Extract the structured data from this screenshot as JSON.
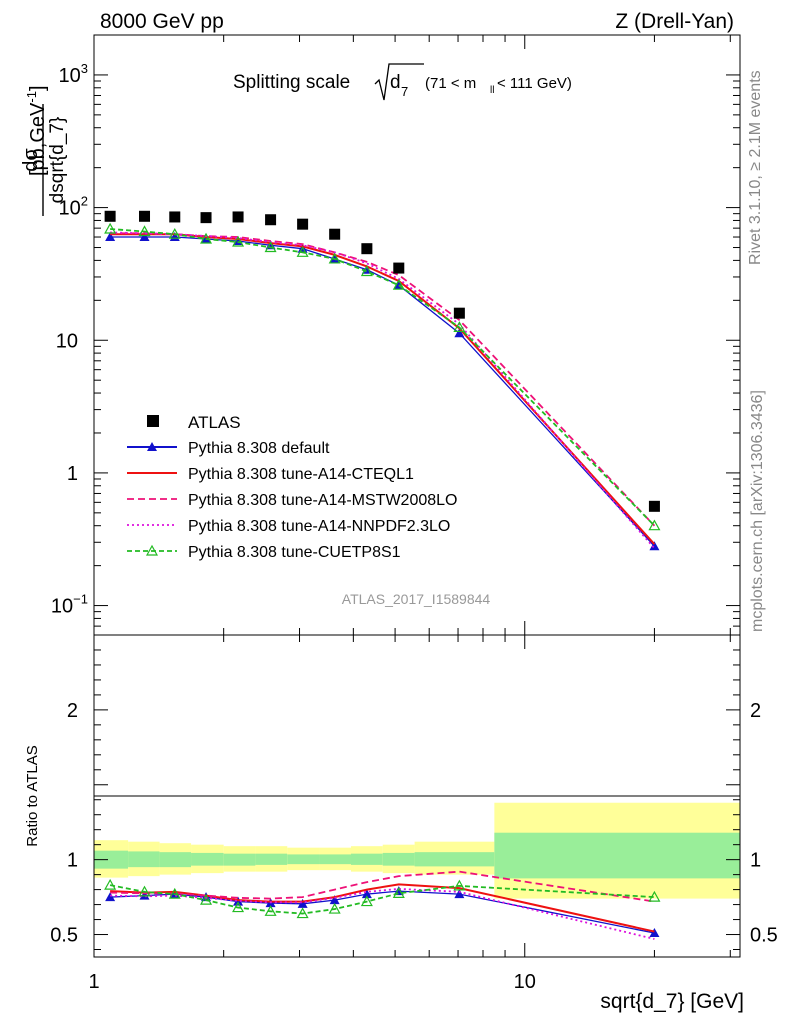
{
  "header": {
    "left": "8000 GeV pp",
    "right": "Z (Drell-Yan)"
  },
  "side_labels": {
    "rivet": "Rivet 3.1.10, ≥ 2.1M events",
    "mcplots": "mcplots.cern.ch [arXiv:1306.3436]"
  },
  "chart_data": [
    {
      "type": "line",
      "panel": "main",
      "title": "Splitting scale",
      "title_symbol": "d",
      "title_symbol_sub": "7",
      "title_range": "(71 < m",
      "title_range_sub": "ll",
      "title_range_end": " < 111 GeV)",
      "ylabel_num": "dσ",
      "ylabel_den": "dsqrt{d_7}",
      "ylabel_units": "[pb,GeV",
      "ylabel_units_sup": "-1",
      "ylabel_units_end": "]",
      "xscale": "log",
      "yscale": "log",
      "xlim": [
        1,
        31.6
      ],
      "ylim": [
        0.06,
        2000
      ],
      "yticks_labeled": [
        {
          "value": 1000,
          "label": "10",
          "sup": "3"
        },
        {
          "value": 100,
          "label": "10",
          "sup": "2"
        },
        {
          "value": 10,
          "label": "10",
          "sup": ""
        },
        {
          "value": 1,
          "label": "1",
          "sup": ""
        },
        {
          "value": 0.1,
          "label": "10",
          "sup": "−1"
        }
      ],
      "watermark": "ATLAS_2017_I1589844",
      "legend_position": "lower-left",
      "data": {
        "name": "ATLAS",
        "x": [
          1.09,
          1.31,
          1.54,
          1.82,
          2.16,
          2.57,
          3.05,
          3.62,
          4.3,
          5.1,
          7.05,
          20.0
        ],
        "y": [
          86,
          86,
          85,
          84,
          85,
          81,
          75,
          63,
          49,
          35,
          16,
          0.56
        ]
      },
      "series": [
        {
          "name": "Pythia 8.308 default",
          "color": "#1111cc",
          "dash": "",
          "marker": "triangle-filled",
          "x": [
            1.09,
            1.31,
            1.54,
            1.82,
            2.16,
            2.57,
            3.05,
            3.62,
            4.3,
            5.1,
            7.05,
            20.0
          ],
          "y": [
            60,
            60,
            60,
            58,
            56,
            52,
            49,
            41,
            34,
            26,
            11.3,
            0.28
          ]
        },
        {
          "name": "Pythia 8.308 tune-A14-CTEQL1",
          "color": "#ee1111",
          "dash": "",
          "marker": "none",
          "x": [
            1.09,
            1.31,
            1.54,
            1.82,
            2.16,
            2.57,
            3.05,
            3.62,
            4.3,
            5.1,
            7.05,
            20.0
          ],
          "y": [
            63,
            63,
            63,
            60,
            58,
            54,
            51,
            44,
            36,
            28,
            12.3,
            0.29
          ]
        },
        {
          "name": "Pythia 8.308 tune-A14-MSTW2008LO",
          "color": "#ee1177",
          "dash": "7,4",
          "marker": "none",
          "x": [
            1.09,
            1.31,
            1.54,
            1.82,
            2.16,
            2.57,
            3.05,
            3.62,
            4.3,
            5.1,
            7.05,
            20.0
          ],
          "y": [
            64,
            64,
            63,
            61,
            60,
            56,
            53,
            46,
            39,
            31,
            14.2,
            0.4
          ]
        },
        {
          "name": "Pythia 8.308 tune-A14-NNPDF2.3LO",
          "color": "#dd11dd",
          "dash": "2,3",
          "marker": "none",
          "x": [
            1.09,
            1.31,
            1.54,
            1.82,
            2.16,
            2.57,
            3.05,
            3.62,
            4.3,
            5.1,
            7.05,
            20.0
          ],
          "y": [
            65,
            64,
            63,
            61,
            59,
            55,
            52,
            46,
            38,
            29,
            13.2,
            0.27
          ]
        },
        {
          "name": "Pythia 8.308 tune-CUETP8S1",
          "color": "#22bb22",
          "dash": "5,3",
          "marker": "triangle-open",
          "x": [
            1.09,
            1.31,
            1.54,
            1.82,
            2.16,
            2.57,
            3.05,
            3.62,
            4.3,
            5.1,
            7.05,
            20.0
          ],
          "y": [
            69,
            66,
            63,
            58,
            55,
            50,
            46,
            41,
            33,
            26,
            12.5,
            0.4
          ]
        }
      ]
    },
    {
      "type": "line",
      "panel": "ratio",
      "ylabel": "Ratio to ATLAS",
      "xlabel": "sqrt{d_7} [GeV]",
      "xscale": "log",
      "xlim": [
        1,
        31.6
      ],
      "ylim": [
        0.35,
        2.5
      ],
      "yticks_labeled": [
        {
          "value": 2,
          "label": "2"
        },
        {
          "value": 1,
          "label": "1"
        },
        {
          "value": 0.5,
          "label": "0.5"
        }
      ],
      "xticks_labeled": [
        {
          "value": 1,
          "label": "1"
        },
        {
          "value": 10,
          "label": "10"
        }
      ],
      "bands": {
        "x_edges": [
          1.0,
          1.2,
          1.42,
          1.68,
          2.0,
          2.37,
          2.81,
          3.33,
          3.95,
          4.68,
          5.55,
          8.5,
          31.6
        ],
        "inner_lo": [
          0.94,
          0.95,
          0.95,
          0.96,
          0.96,
          0.965,
          0.97,
          0.97,
          0.965,
          0.96,
          0.955,
          0.875
        ],
        "inner_hi": [
          1.06,
          1.055,
          1.05,
          1.045,
          1.04,
          1.04,
          1.035,
          1.035,
          1.04,
          1.045,
          1.05,
          1.18
        ],
        "outer_lo": [
          0.88,
          0.89,
          0.9,
          0.91,
          0.92,
          0.92,
          0.93,
          0.93,
          0.92,
          0.91,
          0.9,
          0.74
        ],
        "outer_hi": [
          1.13,
          1.12,
          1.11,
          1.1,
          1.09,
          1.09,
          1.08,
          1.08,
          1.09,
          1.1,
          1.12,
          1.38
        ],
        "inner_color": "#99ee99",
        "outer_color": "#ffff99"
      },
      "series": [
        {
          "name": "Pythia 8.308 default",
          "color": "#1111cc",
          "dash": "",
          "marker": "triangle-filled",
          "x": [
            1.09,
            1.31,
            1.54,
            1.82,
            2.16,
            2.57,
            3.05,
            3.62,
            4.3,
            5.1,
            7.05,
            20.0
          ],
          "y": [
            0.75,
            0.76,
            0.77,
            0.75,
            0.72,
            0.71,
            0.705,
            0.73,
            0.77,
            0.79,
            0.77,
            0.51
          ]
        },
        {
          "name": "Pythia 8.308 tune-A14-CTEQL1",
          "color": "#ee1111",
          "dash": "",
          "marker": "none",
          "x": [
            1.09,
            1.31,
            1.54,
            1.82,
            2.16,
            2.57,
            3.05,
            3.62,
            4.3,
            5.1,
            7.05,
            20.0
          ],
          "y": [
            0.79,
            0.78,
            0.785,
            0.76,
            0.73,
            0.72,
            0.72,
            0.75,
            0.8,
            0.835,
            0.81,
            0.52
          ]
        },
        {
          "name": "Pythia 8.308 tune-A14-MSTW2008LO",
          "color": "#ee1177",
          "dash": "7,4",
          "marker": "none",
          "x": [
            1.09,
            1.31,
            1.54,
            1.82,
            2.16,
            2.57,
            3.05,
            3.62,
            4.3,
            5.1,
            7.05,
            20.0
          ],
          "y": [
            0.78,
            0.775,
            0.775,
            0.76,
            0.745,
            0.74,
            0.75,
            0.8,
            0.85,
            0.89,
            0.92,
            0.72
          ]
        },
        {
          "name": "Pythia 8.308 tune-A14-NNPDF2.3LO",
          "color": "#dd11dd",
          "dash": "2,3",
          "marker": "none",
          "x": [
            1.09,
            1.31,
            1.54,
            1.82,
            2.16,
            2.57,
            3.05,
            3.62,
            4.3,
            5.1,
            7.05,
            20.0
          ],
          "y": [
            0.76,
            0.755,
            0.76,
            0.745,
            0.725,
            0.715,
            0.715,
            0.745,
            0.785,
            0.805,
            0.785,
            0.47
          ]
        },
        {
          "name": "Pythia 8.308 tune-CUETP8S1",
          "color": "#22bb22",
          "dash": "5,3",
          "marker": "triangle-open",
          "x": [
            1.09,
            1.31,
            1.54,
            1.82,
            2.16,
            2.57,
            3.05,
            3.62,
            4.3,
            5.1,
            7.05,
            20.0
          ],
          "y": [
            0.83,
            0.785,
            0.77,
            0.73,
            0.68,
            0.655,
            0.64,
            0.67,
            0.72,
            0.775,
            0.825,
            0.75
          ]
        }
      ]
    }
  ]
}
